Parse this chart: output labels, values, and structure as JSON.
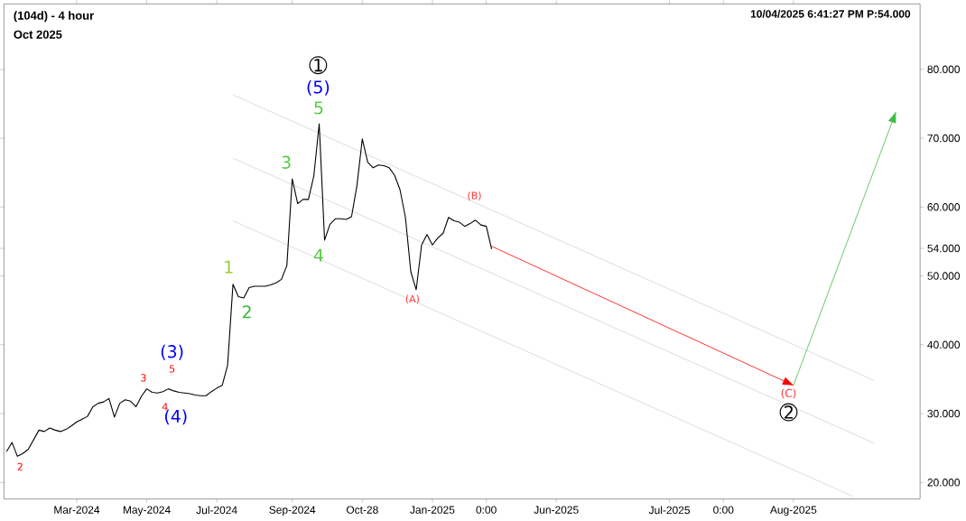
{
  "chart_data": {
    "type": "line",
    "title": "(104d) - 4 hour",
    "subtitle": "Oct 2025",
    "categories": [
      null,
      null,
      null,
      null,
      null,
      null,
      null,
      null,
      null,
      null,
      null,
      null,
      null,
      "Mar-2024",
      null,
      null,
      null,
      null,
      null,
      null,
      null,
      null,
      null,
      null,
      null,
      null,
      "May-2024",
      null,
      null,
      null,
      null,
      null,
      null,
      null,
      null,
      null,
      null,
      null,
      null,
      "Jul-2024",
      null,
      null,
      null,
      null,
      null,
      null,
      null,
      null,
      null,
      null,
      null,
      null,
      null,
      "Sep-2024",
      null,
      null,
      null,
      null,
      null,
      null,
      null,
      null,
      null,
      null,
      null,
      null,
      "Oct-28",
      null,
      null,
      null,
      null,
      null,
      null,
      null,
      null,
      null,
      null,
      null,
      null,
      "Jan-2025",
      null,
      null,
      null,
      null,
      null,
      null,
      null,
      null,
      null,
      "0:00",
      null,
      null,
      null,
      null,
      null,
      null,
      null,
      null,
      null,
      null,
      null,
      null,
      "Jun-2025",
      null,
      null,
      null,
      null,
      null,
      null,
      null,
      null,
      null,
      null,
      null,
      null,
      null,
      null,
      null,
      null,
      null,
      null,
      null,
      null,
      "Jul-2025",
      null,
      null,
      null,
      null,
      null,
      null,
      null,
      null,
      null,
      "0:00",
      null,
      null,
      null,
      null,
      null,
      null,
      null,
      null,
      null,
      null,
      null,
      null,
      "Aug-2025",
      null,
      null,
      null,
      null,
      null,
      null,
      null,
      null,
      null,
      null,
      null,
      null,
      null,
      null,
      null,
      null,
      null,
      null,
      null,
      null,
      null,
      null,
      null
    ],
    "ylim": [
      17.6,
      89.5
    ],
    "yticks": [
      {
        "value": 20,
        "label": "20.000"
      },
      {
        "value": 30,
        "label": "30.000"
      },
      {
        "value": 40,
        "label": "40.000"
      },
      {
        "value": 50,
        "label": "50.000"
      },
      {
        "value": 54,
        "label": "54.000"
      },
      {
        "value": 60,
        "label": "60.000"
      },
      {
        "value": 70,
        "label": "70.000"
      },
      {
        "value": 80,
        "label": "80.000"
      }
    ],
    "grid": false,
    "series": [
      {
        "color": "#d3d3d3",
        "values": [
          null,
          null,
          null,
          null,
          null,
          null,
          null,
          null,
          null,
          null,
          null,
          null,
          null,
          null,
          null,
          null,
          null,
          null,
          null,
          null,
          null,
          null,
          null,
          null,
          null,
          null,
          null,
          null,
          null,
          null,
          null,
          null,
          null,
          null,
          null,
          null,
          null,
          null,
          null,
          null,
          null,
          null,
          76.3,
          null,
          null,
          null,
          null,
          null,
          null,
          null,
          null,
          null,
          null,
          null,
          null,
          null,
          null,
          null,
          null,
          null,
          null,
          null,
          null,
          null,
          null,
          null,
          null,
          null,
          null,
          null,
          null,
          null,
          null,
          null,
          null,
          null,
          null,
          null,
          null,
          null,
          null,
          null,
          null,
          null,
          null,
          null,
          null,
          null,
          null,
          null,
          null,
          null,
          null,
          null,
          null,
          null,
          null,
          null,
          null,
          null,
          null,
          null,
          null,
          null,
          null,
          null,
          null,
          null,
          null,
          null,
          null,
          null,
          null,
          null,
          null,
          null,
          null,
          null,
          null,
          null,
          null,
          null,
          null,
          null,
          null,
          null,
          null,
          null,
          null,
          null,
          null,
          null,
          null,
          null,
          null,
          null,
          null,
          null,
          null,
          null,
          null,
          null,
          null,
          null,
          null,
          null,
          null,
          null,
          null,
          null,
          null,
          null,
          null,
          null,
          null,
          null,
          null,
          null,
          null,
          null,
          null,
          34.8,
          null,
          null,
          null,
          null,
          null,
          null,
          null,
          null
        ]
      },
      {
        "color": "#d3d3d3",
        "values": [
          null,
          null,
          null,
          null,
          null,
          null,
          null,
          null,
          null,
          null,
          null,
          null,
          null,
          null,
          null,
          null,
          null,
          null,
          null,
          null,
          null,
          null,
          null,
          null,
          null,
          null,
          null,
          null,
          null,
          null,
          null,
          null,
          null,
          null,
          null,
          null,
          null,
          null,
          null,
          null,
          null,
          null,
          67.1,
          null,
          null,
          null,
          null,
          null,
          null,
          null,
          null,
          null,
          null,
          null,
          null,
          null,
          null,
          null,
          null,
          null,
          null,
          null,
          null,
          null,
          null,
          null,
          null,
          null,
          null,
          null,
          null,
          null,
          null,
          null,
          null,
          null,
          null,
          null,
          null,
          null,
          null,
          null,
          null,
          null,
          null,
          null,
          null,
          null,
          null,
          null,
          null,
          null,
          null,
          null,
          null,
          null,
          null,
          null,
          null,
          null,
          null,
          null,
          null,
          null,
          null,
          null,
          null,
          null,
          null,
          null,
          null,
          null,
          null,
          null,
          null,
          null,
          null,
          null,
          null,
          null,
          null,
          null,
          null,
          null,
          null,
          null,
          null,
          null,
          null,
          null,
          null,
          null,
          null,
          null,
          null,
          null,
          null,
          null,
          null,
          null,
          null,
          null,
          null,
          null,
          null,
          null,
          null,
          null,
          null,
          null,
          null,
          null,
          null,
          null,
          null,
          null,
          null,
          null,
          null,
          null,
          null,
          25.7,
          null,
          null,
          null,
          null,
          null,
          null,
          null,
          null
        ]
      },
      {
        "color": "#d3d3d3",
        "values": [
          null,
          null,
          null,
          null,
          null,
          null,
          null,
          null,
          null,
          null,
          null,
          null,
          null,
          null,
          null,
          null,
          null,
          null,
          null,
          null,
          null,
          null,
          null,
          null,
          null,
          null,
          null,
          null,
          null,
          null,
          null,
          null,
          null,
          null,
          null,
          null,
          null,
          null,
          null,
          null,
          null,
          null,
          58.0,
          null,
          null,
          null,
          null,
          null,
          null,
          null,
          null,
          null,
          null,
          null,
          null,
          null,
          null,
          null,
          null,
          null,
          null,
          null,
          null,
          null,
          null,
          null,
          null,
          null,
          null,
          null,
          null,
          null,
          null,
          null,
          null,
          null,
          null,
          null,
          null,
          null,
          null,
          null,
          null,
          null,
          null,
          null,
          null,
          null,
          null,
          null,
          null,
          null,
          null,
          null,
          null,
          null,
          null,
          null,
          null,
          null,
          null,
          null,
          null,
          null,
          null,
          null,
          null,
          null,
          null,
          null,
          null,
          null,
          null,
          null,
          null,
          null,
          null,
          null,
          null,
          null,
          null,
          null,
          null,
          null,
          null,
          null,
          null,
          null,
          null,
          null,
          null,
          null,
          null,
          null,
          null,
          null,
          null,
          null,
          null,
          null,
          null,
          null,
          null,
          null,
          null,
          null,
          null,
          null,
          null,
          null,
          null,
          null,
          null,
          null,
          null,
          null,
          null,
          18.0,
          null,
          null,
          null,
          null,
          null,
          null,
          null,
          null,
          null,
          null,
          null,
          null
        ]
      },
      {
        "color": "#000000",
        "values": [
          24.5,
          25.8,
          23.8,
          24.2,
          24.8,
          26.2,
          27.6,
          27.4,
          27.9,
          27.6,
          27.4,
          27.7,
          28.2,
          28.8,
          29.2,
          29.6,
          31.0,
          31.5,
          31.7,
          32.2,
          29.5,
          31.5,
          32.0,
          31.8,
          31.0,
          32.5,
          33.6,
          33.1,
          33.0,
          33.2,
          33.6,
          33.3,
          33.1,
          33.0,
          32.9,
          32.7,
          32.6,
          32.6,
          33.2,
          33.7,
          34.1,
          37.0,
          48.8,
          47.0,
          46.8,
          48.3,
          48.5,
          48.5,
          48.5,
          48.7,
          49.0,
          49.5,
          51.5,
          64.1,
          60.5,
          61.1,
          61.1,
          64.5,
          72.1,
          55.2,
          57.5,
          58.3,
          58.3,
          58.2,
          58.6,
          63.1,
          69.9,
          66.5,
          65.7,
          66.1,
          66.0,
          65.7,
          64.6,
          62.5,
          58.5,
          50.6,
          48.0,
          54.5,
          56.0,
          54.5,
          55.5,
          56.2,
          58.5,
          58.0,
          57.8,
          57.2,
          57.6,
          58.1,
          57.4,
          57.2,
          53.9,
          null,
          null,
          null,
          null,
          null,
          null,
          null,
          null,
          null,
          null,
          null,
          null,
          null,
          null,
          null,
          null,
          null,
          null,
          null,
          null,
          null,
          null,
          null,
          null,
          null,
          null,
          null,
          null,
          null,
          null,
          null,
          null,
          null,
          null,
          null,
          null,
          null,
          null,
          null,
          null,
          null,
          null,
          null,
          null,
          null,
          null,
          null,
          null,
          null,
          null,
          null,
          null,
          null,
          null,
          null,
          null,
          null,
          null,
          null,
          null,
          null,
          null,
          null,
          null,
          null,
          null,
          null,
          null,
          null,
          null,
          null,
          null,
          null,
          null,
          null,
          null,
          null,
          null,
          null
        ]
      },
      {
        "color": "#ff0000",
        "values": [
          null,
          null,
          null,
          null,
          null,
          null,
          null,
          null,
          null,
          null,
          null,
          null,
          null,
          null,
          null,
          null,
          null,
          null,
          null,
          null,
          null,
          null,
          null,
          null,
          null,
          null,
          null,
          null,
          null,
          null,
          null,
          null,
          null,
          null,
          null,
          null,
          null,
          null,
          null,
          null,
          null,
          null,
          null,
          null,
          null,
          null,
          null,
          null,
          null,
          null,
          null,
          null,
          null,
          null,
          null,
          null,
          null,
          null,
          null,
          null,
          null,
          null,
          null,
          null,
          null,
          null,
          null,
          null,
          null,
          null,
          null,
          null,
          null,
          null,
          null,
          null,
          null,
          null,
          null,
          null,
          null,
          null,
          null,
          null,
          null,
          null,
          null,
          null,
          null,
          null,
          54.3,
          null,
          null,
          null,
          null,
          null,
          null,
          null,
          null,
          null,
          null,
          null,
          null,
          null,
          null,
          null,
          null,
          null,
          null,
          null,
          null,
          null,
          null,
          null,
          null,
          null,
          null,
          null,
          null,
          null,
          null,
          null,
          null,
          null,
          null,
          null,
          null,
          null,
          null,
          null,
          null,
          null,
          null,
          null,
          null,
          null,
          null,
          null,
          null,
          null,
          null,
          null,
          null,
          null,
          null,
          null,
          34.1,
          null,
          null,
          null,
          null,
          null,
          null,
          null,
          null,
          null,
          null,
          null,
          null,
          null,
          null,
          null,
          null,
          null,
          null,
          null,
          null,
          null,
          null,
          null
        ]
      },
      {
        "color": "#44bb44",
        "values": [
          null,
          null,
          null,
          null,
          null,
          null,
          null,
          null,
          null,
          null,
          null,
          null,
          null,
          null,
          null,
          null,
          null,
          null,
          null,
          null,
          null,
          null,
          null,
          null,
          null,
          null,
          null,
          null,
          null,
          null,
          null,
          null,
          null,
          null,
          null,
          null,
          null,
          null,
          null,
          null,
          null,
          null,
          null,
          null,
          null,
          null,
          null,
          null,
          null,
          null,
          null,
          null,
          null,
          null,
          null,
          null,
          null,
          null,
          null,
          null,
          null,
          null,
          null,
          null,
          null,
          null,
          null,
          null,
          null,
          null,
          null,
          null,
          null,
          null,
          null,
          null,
          null,
          null,
          null,
          null,
          null,
          null,
          null,
          null,
          null,
          null,
          null,
          null,
          null,
          null,
          null,
          null,
          null,
          null,
          null,
          null,
          null,
          null,
          null,
          null,
          null,
          null,
          null,
          null,
          null,
          null,
          null,
          null,
          null,
          null,
          null,
          null,
          null,
          null,
          null,
          null,
          null,
          null,
          null,
          null,
          null,
          null,
          null,
          null,
          null,
          null,
          null,
          null,
          null,
          null,
          null,
          null,
          null,
          null,
          null,
          null,
          null,
          null,
          null,
          null,
          null,
          null,
          null,
          null,
          null,
          null,
          34.1,
          null,
          null,
          null,
          null,
          null,
          null,
          null,
          null,
          null,
          null,
          null,
          null,
          null,
          null,
          null,
          null,
          null,
          null,
          73.8,
          null,
          null,
          null,
          null
        ]
      }
    ],
    "annotations": [
      "10/04/2025 6:41:27 PM  P:54.000",
      "➀",
      "(5)",
      "5",
      "3",
      "4",
      "1",
      "2",
      "(3)",
      "5",
      "3",
      "4",
      "(4)",
      "2",
      "(A)",
      "(B)",
      "(C)",
      "➁"
    ]
  }
}
